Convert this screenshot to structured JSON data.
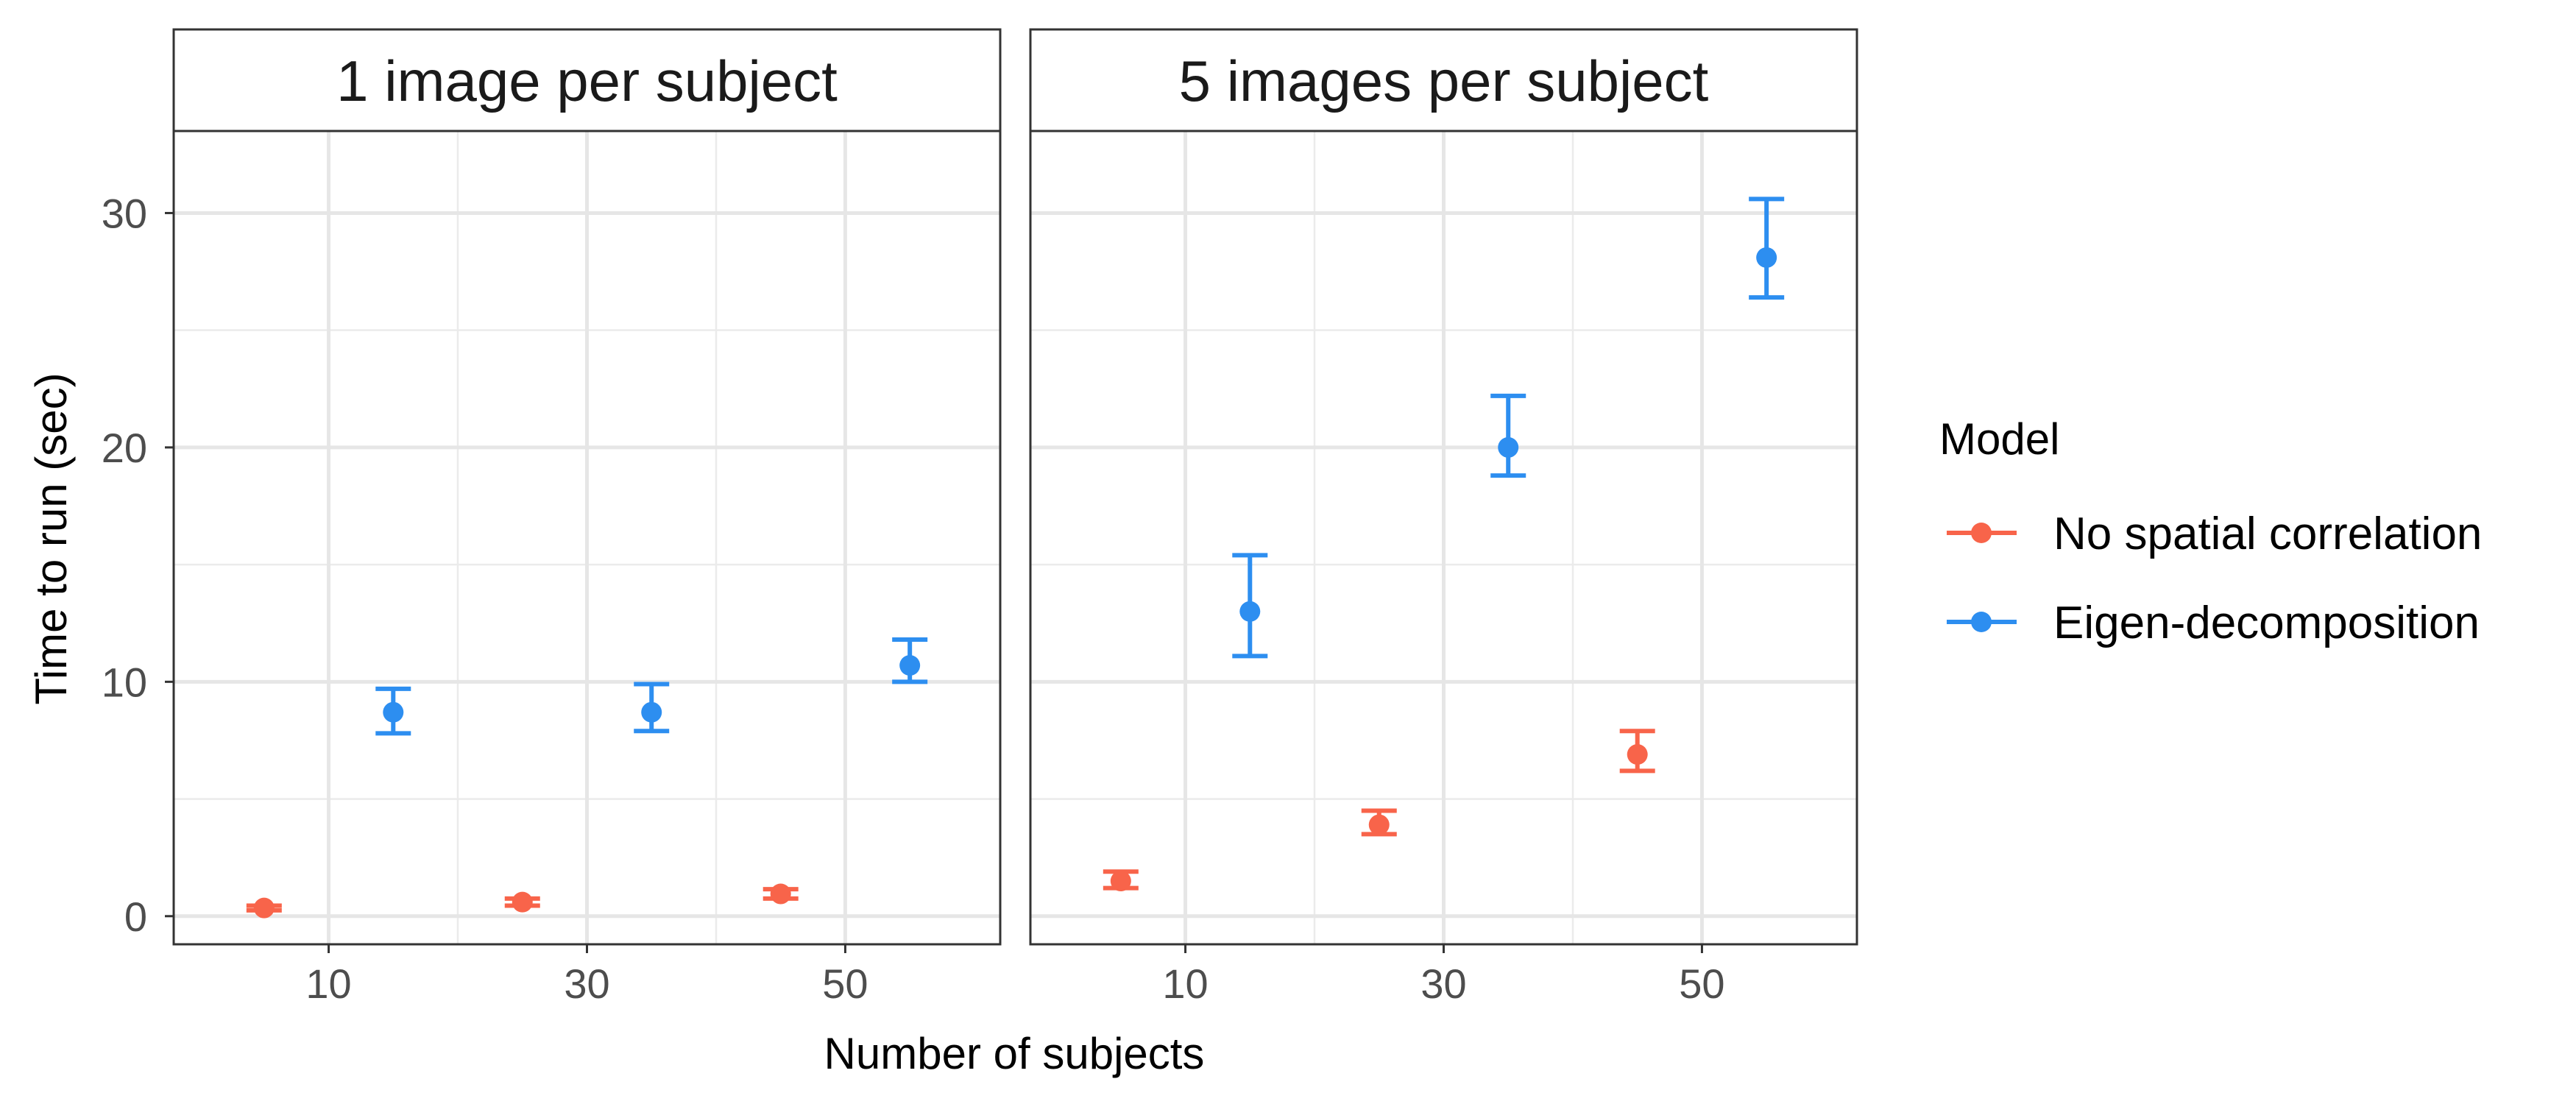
{
  "chart_data": {
    "type": "scatter",
    "xlabel": "Number of subjects",
    "ylabel": "Time to run (sec)",
    "x_ticks": [
      10,
      30,
      50
    ],
    "y_ticks": [
      0,
      10,
      20,
      30
    ],
    "xlim": [
      -2,
      62
    ],
    "ylim": [
      -1.2,
      33.5
    ],
    "grid": true,
    "legend": {
      "title": "Model",
      "position": "right",
      "entries": [
        {
          "name": "No spatial correlation",
          "color": "#F8644A"
        },
        {
          "name": "Eigen-decomposition",
          "color": "#2D8EF0"
        }
      ]
    },
    "facets": [
      {
        "title": "1 image per subject",
        "series": [
          {
            "name": "No spatial correlation",
            "color": "#F8644A",
            "points": [
              {
                "x": 5,
                "y": 0.35,
                "ymin": 0.25,
                "ymax": 0.45
              },
              {
                "x": 25,
                "y": 0.6,
                "ymin": 0.45,
                "ymax": 0.75
              },
              {
                "x": 45,
                "y": 0.95,
                "ymin": 0.75,
                "ymax": 1.15
              }
            ]
          },
          {
            "name": "Eigen-decomposition",
            "color": "#2D8EF0",
            "points": [
              {
                "x": 15,
                "y": 8.7,
                "ymin": 7.8,
                "ymax": 9.7
              },
              {
                "x": 35,
                "y": 8.7,
                "ymin": 7.9,
                "ymax": 9.9
              },
              {
                "x": 55,
                "y": 10.7,
                "ymin": 10.0,
                "ymax": 11.8
              }
            ]
          }
        ]
      },
      {
        "title": "5 images per subject",
        "series": [
          {
            "name": "No spatial correlation",
            "color": "#F8644A",
            "points": [
              {
                "x": 5,
                "y": 1.5,
                "ymin": 1.2,
                "ymax": 1.9
              },
              {
                "x": 25,
                "y": 3.9,
                "ymin": 3.5,
                "ymax": 4.5
              },
              {
                "x": 45,
                "y": 6.9,
                "ymin": 6.2,
                "ymax": 7.9
              }
            ]
          },
          {
            "name": "Eigen-decomposition",
            "color": "#2D8EF0",
            "points": [
              {
                "x": 15,
                "y": 13.0,
                "ymin": 11.1,
                "ymax": 15.4
              },
              {
                "x": 35,
                "y": 20.0,
                "ymin": 18.8,
                "ymax": 22.2
              },
              {
                "x": 55,
                "y": 28.1,
                "ymin": 26.4,
                "ymax": 30.6
              }
            ]
          }
        ]
      }
    ]
  }
}
